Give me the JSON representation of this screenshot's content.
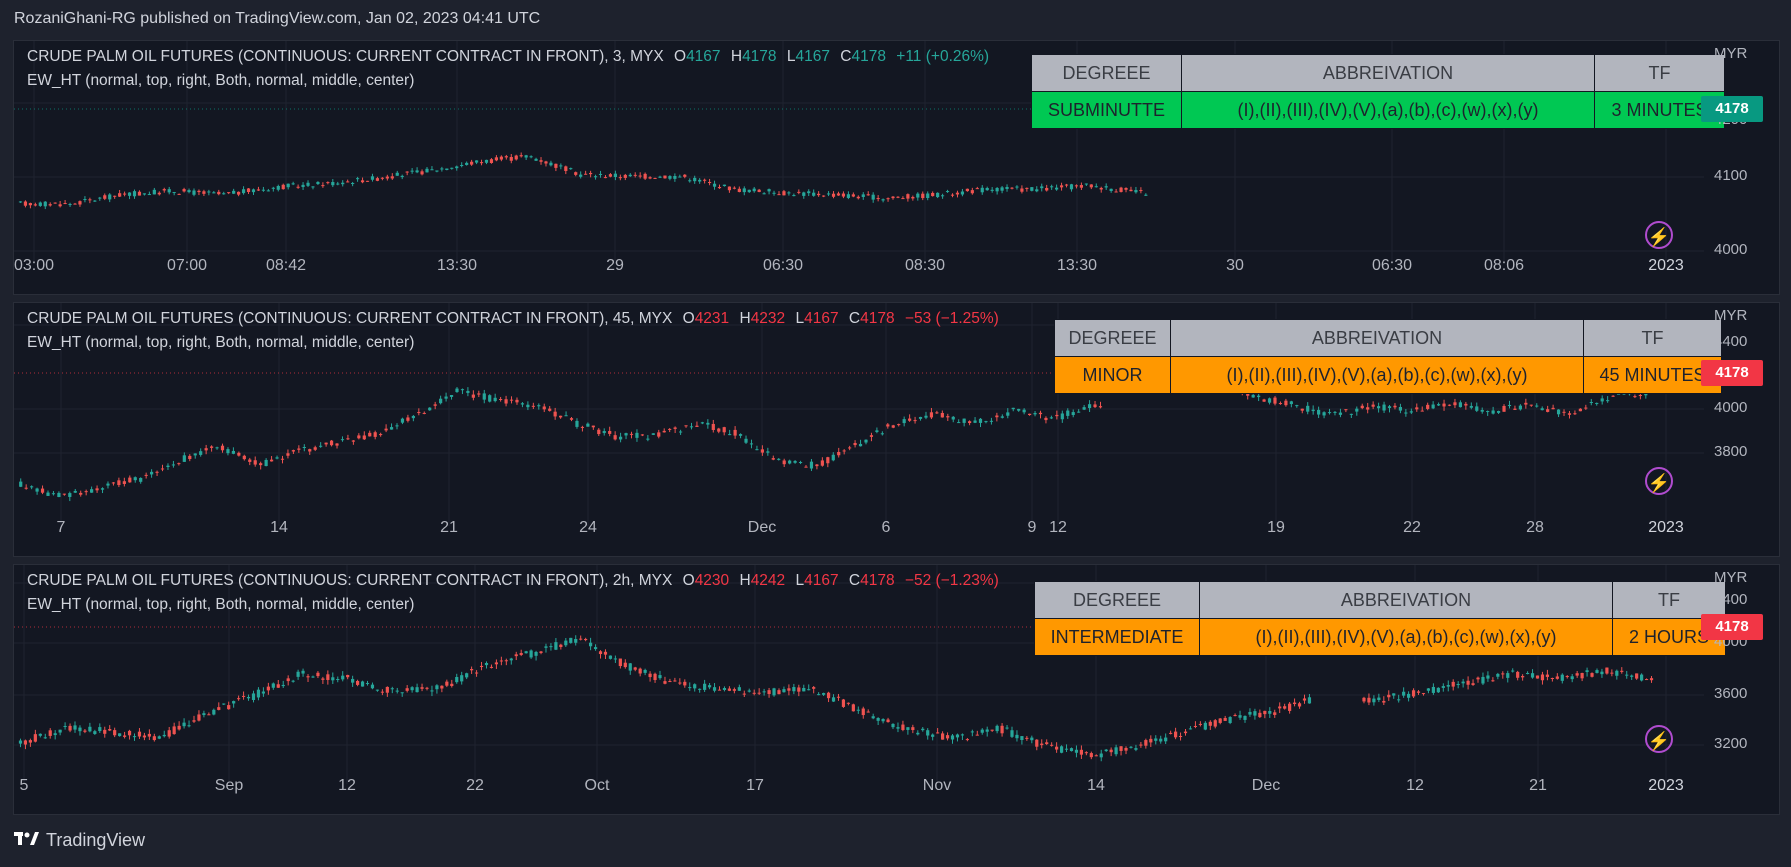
{
  "header": {
    "text": "RozaniGhani-RG published on TradingView.com, Jan 02, 2023 04:41 UTC"
  },
  "footer": {
    "logo_text": "TradingView"
  },
  "panes": [
    {
      "symbol": "CRUDE PALM OIL FUTURES (CONTINUOUS: CURRENT CONTRACT IN FRONT), 3, MYX",
      "o": "4167",
      "h": "4178",
      "l": "4167",
      "c": "4178",
      "change": "+11 (+0.26%)",
      "change_color": "#26a69a",
      "indicator": "EW_HT (normal, top, right, Both, normal, middle, center)",
      "currency": "MYR",
      "price": "4178",
      "price_color": "#089981",
      "y_labels": [
        "4200",
        "4100",
        "4000"
      ],
      "x_labels": [
        "03:00",
        "07:00",
        "08:42",
        "13:30",
        "29",
        "06:30",
        "08:30",
        "13:30",
        "30",
        "06:30",
        "08:06",
        "2023"
      ],
      "table": {
        "headers": [
          "DEGREEE",
          "ABBREIVATION",
          "TF"
        ],
        "row": [
          "SUBMINUTTE",
          "(I),(II),(III),(IV),(V),(a),(b),(c),(w),(x),(y)",
          "3 MINUTES"
        ],
        "row_color": "#00c853"
      }
    },
    {
      "symbol": "CRUDE PALM OIL FUTURES (CONTINUOUS: CURRENT CONTRACT IN FRONT), 45, MYX",
      "o": "4231",
      "h": "4232",
      "l": "4167",
      "c": "4178",
      "change": "−53 (−1.25%)",
      "change_color": "#f23645",
      "indicator": "EW_HT (normal, top, right, Both, normal, middle, center)",
      "currency": "MYR",
      "price": "4178",
      "price_color": "#f23645",
      "y_labels": [
        "4400",
        "4000",
        "3800"
      ],
      "x_labels": [
        "7",
        "14",
        "21",
        "24",
        "Dec",
        "6",
        "9",
        "12",
        "19",
        "22",
        "28",
        "2023"
      ],
      "table": {
        "headers": [
          "DEGREEE",
          "ABBREIVATION",
          "TF"
        ],
        "row": [
          "MINOR",
          "(I),(II),(III),(IV),(V),(a),(b),(c),(w),(x),(y)",
          "45 MINUTES"
        ],
        "row_color": "#ff9800"
      }
    },
    {
      "symbol": "CRUDE PALM OIL FUTURES (CONTINUOUS: CURRENT CONTRACT IN FRONT), 2h, MYX",
      "o": "4230",
      "h": "4242",
      "l": "4167",
      "c": "4178",
      "change": "−52 (−1.23%)",
      "change_color": "#f23645",
      "indicator": "EW_HT (normal, top, right, Both, normal, middle, center)",
      "currency": "MYR",
      "price": "4178",
      "price_color": "#f23645",
      "y_labels": [
        "4400",
        "4000",
        "3600",
        "3200"
      ],
      "x_labels": [
        "5",
        "Sep",
        "12",
        "22",
        "Oct",
        "17",
        "Nov",
        "14",
        "Dec",
        "12",
        "21",
        "2023"
      ],
      "table": {
        "headers": [
          "DEGREEE",
          "ABBREIVATION",
          "TF"
        ],
        "row": [
          "INTERMEDIATE",
          "(I),(II),(III),(IV),(V),(a),(b),(c),(w),(x),(y)",
          "2 HOURS"
        ],
        "row_color": "#ff9800"
      }
    }
  ]
}
